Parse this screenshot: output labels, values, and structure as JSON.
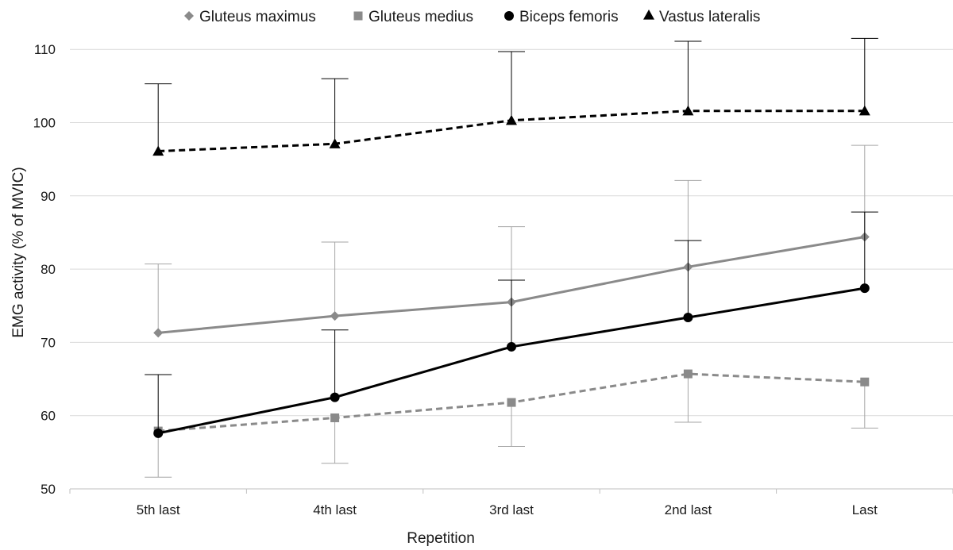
{
  "chart_data": {
    "type": "line",
    "title": "",
    "xlabel": "Repetition",
    "ylabel": "EMG activity (% of MVIC)",
    "categories": [
      "5th last",
      "4th last",
      "3rd last",
      "2nd last",
      "Last"
    ],
    "ylim": [
      50,
      115
    ],
    "yticks": [
      50,
      60,
      70,
      80,
      90,
      100,
      110
    ],
    "grid": true,
    "legend_position": "top",
    "series": [
      {
        "name": "Gluteus maximus",
        "values": [
          71.3,
          73.6,
          75.5,
          80.3,
          84.4
        ],
        "error_upper": [
          80.7,
          83.7,
          85.8,
          92.1,
          96.9
        ],
        "color": "#8a8a8a",
        "marker": "diamond",
        "dash": "solid",
        "error_color": "#a6a6a6"
      },
      {
        "name": "Gluteus medius",
        "values": [
          57.9,
          59.7,
          61.8,
          65.7,
          64.6
        ],
        "error_lower": [
          51.6,
          53.5,
          55.8,
          59.1,
          58.3
        ],
        "color": "#8a8a8a",
        "marker": "square",
        "dash": "dashed",
        "error_color": "#a6a6a6"
      },
      {
        "name": "Biceps femoris",
        "values": [
          57.6,
          62.5,
          69.4,
          73.4,
          77.4
        ],
        "error_upper": [
          65.6,
          71.7,
          78.5,
          83.9,
          87.8
        ],
        "color": "#000000",
        "marker": "circle",
        "dash": "solid",
        "error_color": "#000000"
      },
      {
        "name": "Vastus lateralis",
        "values": [
          96.1,
          97.1,
          100.3,
          101.6,
          101.6
        ],
        "error_upper": [
          105.3,
          106.0,
          109.7,
          111.1,
          111.5
        ],
        "color": "#000000",
        "marker": "triangle",
        "dash": "dashed",
        "error_color": "#000000"
      }
    ]
  }
}
